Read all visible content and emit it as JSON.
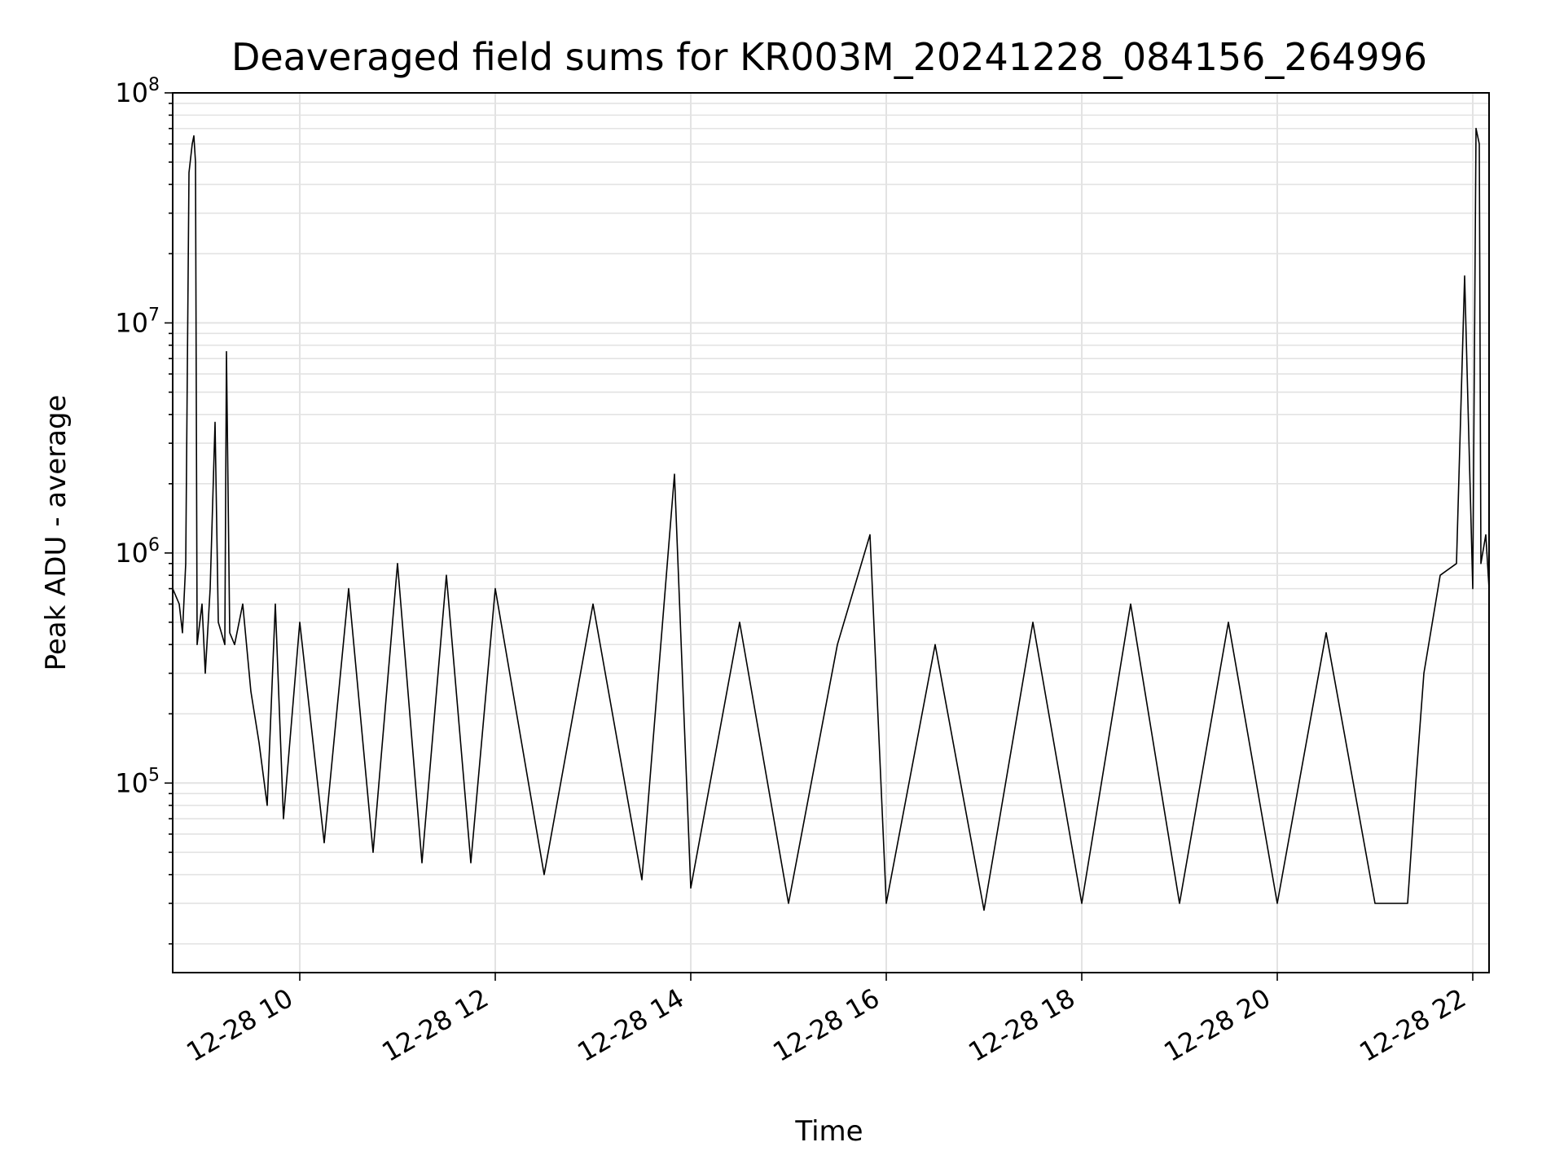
{
  "chart_data": {
    "type": "line",
    "title": "Deaveraged field sums for KR003M_20241228_084156_264996",
    "xlabel": "Time",
    "ylabel": "Peak ADU - average",
    "yscale": "log",
    "ylim": [
      15000,
      100000000
    ],
    "xlim": [
      "2024-12-28 08:42",
      "2024-12-28 22:10"
    ],
    "grid": true,
    "line_color": "#000000",
    "x_ticks": [
      {
        "x": "2024-12-28 10:00",
        "label": "12-28 10"
      },
      {
        "x": "2024-12-28 12:00",
        "label": "12-28 12"
      },
      {
        "x": "2024-12-28 14:00",
        "label": "12-28 14"
      },
      {
        "x": "2024-12-28 16:00",
        "label": "12-28 16"
      },
      {
        "x": "2024-12-28 18:00",
        "label": "12-28 18"
      },
      {
        "x": "2024-12-28 20:00",
        "label": "12-28 20"
      },
      {
        "x": "2024-12-28 22:00",
        "label": "12-28 22"
      }
    ],
    "y_ticks": [
      {
        "value": 100000,
        "base": "10",
        "exp": "5"
      },
      {
        "value": 1000000,
        "base": "10",
        "exp": "6"
      },
      {
        "value": 10000000,
        "base": "10",
        "exp": "7"
      },
      {
        "value": 100000000,
        "base": "10",
        "exp": "8"
      }
    ],
    "series": [
      {
        "points": [
          [
            "2024-12-28 08:42",
            700000
          ],
          [
            "2024-12-28 08:46",
            600000
          ],
          [
            "2024-12-28 08:48",
            450000
          ],
          [
            "2024-12-28 08:50",
            900000
          ],
          [
            "2024-12-28 08:52",
            45000000
          ],
          [
            "2024-12-28 08:54",
            60000000
          ],
          [
            "2024-12-28 08:55",
            65000000
          ],
          [
            "2024-12-28 08:56",
            50000000
          ],
          [
            "2024-12-28 08:57",
            400000
          ],
          [
            "2024-12-28 09:00",
            600000
          ],
          [
            "2024-12-28 09:02",
            300000
          ],
          [
            "2024-12-28 09:05",
            700000
          ],
          [
            "2024-12-28 09:08",
            3700000
          ],
          [
            "2024-12-28 09:10",
            500000
          ],
          [
            "2024-12-28 09:14",
            400000
          ],
          [
            "2024-12-28 09:15",
            7500000
          ],
          [
            "2024-12-28 09:17",
            450000
          ],
          [
            "2024-12-28 09:20",
            400000
          ],
          [
            "2024-12-28 09:25",
            600000
          ],
          [
            "2024-12-28 09:30",
            250000
          ],
          [
            "2024-12-28 09:35",
            150000
          ],
          [
            "2024-12-28 09:40",
            80000
          ],
          [
            "2024-12-28 09:45",
            600000
          ],
          [
            "2024-12-28 09:50",
            70000
          ],
          [
            "2024-12-28 10:00",
            500000
          ],
          [
            "2024-12-28 10:15",
            55000
          ],
          [
            "2024-12-28 10:30",
            700000
          ],
          [
            "2024-12-28 10:45",
            50000
          ],
          [
            "2024-12-28 11:00",
            900000
          ],
          [
            "2024-12-28 11:15",
            45000
          ],
          [
            "2024-12-28 11:30",
            800000
          ],
          [
            "2024-12-28 11:45",
            45000
          ],
          [
            "2024-12-28 12:00",
            700000
          ],
          [
            "2024-12-28 12:30",
            40000
          ],
          [
            "2024-12-28 13:00",
            600000
          ],
          [
            "2024-12-28 13:30",
            38000
          ],
          [
            "2024-12-28 13:50",
            2200000
          ],
          [
            "2024-12-28 14:00",
            35000
          ],
          [
            "2024-12-28 14:30",
            500000
          ],
          [
            "2024-12-28 15:00",
            30000
          ],
          [
            "2024-12-28 15:30",
            400000
          ],
          [
            "2024-12-28 15:50",
            1200000
          ],
          [
            "2024-12-28 16:00",
            30000
          ],
          [
            "2024-12-28 16:30",
            400000
          ],
          [
            "2024-12-28 17:00",
            28000
          ],
          [
            "2024-12-28 17:30",
            500000
          ],
          [
            "2024-12-28 18:00",
            30000
          ],
          [
            "2024-12-28 18:30",
            600000
          ],
          [
            "2024-12-28 19:00",
            30000
          ],
          [
            "2024-12-28 19:30",
            500000
          ],
          [
            "2024-12-28 20:00",
            30000
          ],
          [
            "2024-12-28 20:30",
            450000
          ],
          [
            "2024-12-28 21:00",
            30000
          ],
          [
            "2024-12-28 21:20",
            30000
          ],
          [
            "2024-12-28 21:25",
            100000
          ],
          [
            "2024-12-28 21:30",
            300000
          ],
          [
            "2024-12-28 21:40",
            800000
          ],
          [
            "2024-12-28 21:50",
            900000
          ],
          [
            "2024-12-28 21:55",
            16000000
          ],
          [
            "2024-12-28 22:00",
            700000
          ],
          [
            "2024-12-28 22:02",
            70000000
          ],
          [
            "2024-12-28 22:04",
            60000000
          ],
          [
            "2024-12-28 22:05",
            900000
          ],
          [
            "2024-12-28 22:08",
            1200000
          ],
          [
            "2024-12-28 22:10",
            700000
          ]
        ]
      }
    ]
  }
}
